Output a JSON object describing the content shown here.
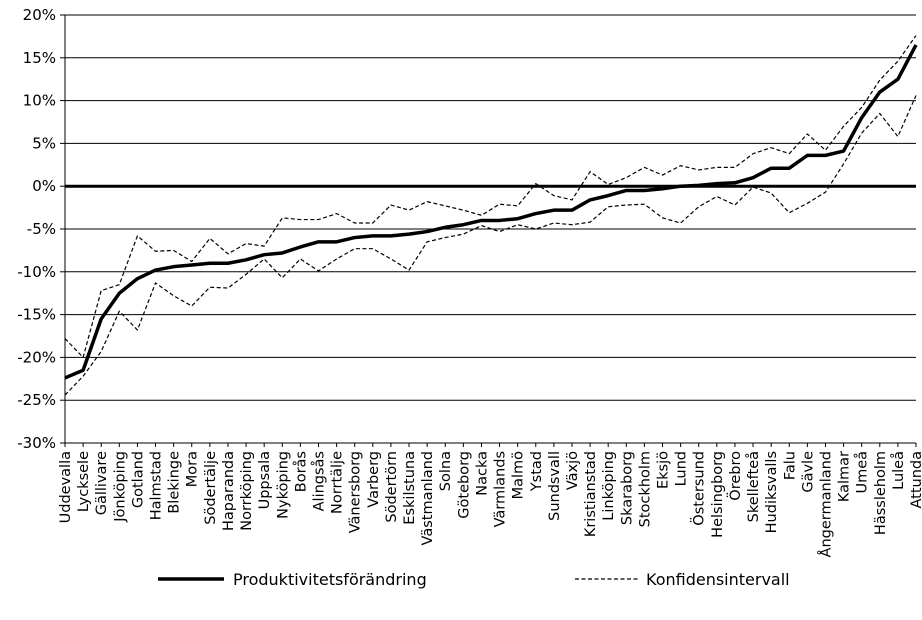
{
  "chart_data": {
    "type": "line",
    "title": "",
    "xlabel": "",
    "ylabel": "",
    "ylim": [
      -30,
      20
    ],
    "yticks": [
      "20%",
      "15%",
      "10%",
      "5%",
      "0%",
      "-5%",
      "-10%",
      "-15%",
      "-20%",
      "-25%",
      "-30%"
    ],
    "ytick_values": [
      20,
      15,
      10,
      5,
      0,
      -5,
      -10,
      -15,
      -20,
      -25,
      -30
    ],
    "grid": "horizontal",
    "legend_position": "bottom",
    "categories": [
      "Uddevalla",
      "Lycksele",
      "Gällivare",
      "Jönköping",
      "Gotland",
      "Halmstad",
      "Blekinge",
      "Mora",
      "Södertälje",
      "Haparanda",
      "Norrköping",
      "Uppsala",
      "Nyköping",
      "Borås",
      "Alingsås",
      "Norrtälje",
      "Vänersborg",
      "Varberg",
      "Södertörn",
      "Eskilstuna",
      "Västmanland",
      "Solna",
      "Göteborg",
      "Nacka",
      "Värmlands",
      "Malmö",
      "Ystad",
      "Sundsvall",
      "Växjö",
      "Kristianstad",
      "Linköping",
      "Skaraborg",
      "Stockholm",
      "Eksjö",
      "Lund",
      "Östersund",
      "Helsingborg",
      "Örebro",
      "Skellefteå",
      "Hudiksvalls",
      "Falu",
      "Gävle",
      "Ångermanland",
      "Kalmar",
      "Umeå",
      "Hässleholm",
      "Luleå",
      "Attunda"
    ],
    "series": [
      {
        "name": "Produktivitetsförändring",
        "style": "solid",
        "color": "#000000",
        "values": [
          -22.4,
          -21.5,
          -15.5,
          -12.5,
          -10.8,
          -9.8,
          -9.4,
          -9.2,
          -9.0,
          -9.0,
          -8.6,
          -8.0,
          -7.8,
          -7.1,
          -6.5,
          -6.5,
          -6.0,
          -5.8,
          -5.8,
          -5.6,
          -5.3,
          -4.8,
          -4.5,
          -4.0,
          -4.0,
          -3.8,
          -3.2,
          -2.8,
          -2.8,
          -1.6,
          -1.1,
          -0.5,
          -0.5,
          -0.3,
          0.0,
          0.1,
          0.3,
          0.4,
          1.0,
          2.1,
          2.1,
          3.6,
          3.6,
          4.1,
          8.0,
          11.0,
          12.5,
          16.5
        ]
      },
      {
        "name": "Konfidensintervall",
        "style": "dashed",
        "color": "#000000",
        "values": [
          -17.8,
          -20.0,
          -12.2,
          -11.5,
          -5.8,
          -7.6,
          -7.5,
          -8.8,
          -6.1,
          -7.9,
          -6.7,
          -7.0,
          -3.7,
          -3.9,
          -3.9,
          -3.2,
          -4.3,
          -4.3,
          -2.2,
          -2.8,
          -1.8,
          -2.3,
          -2.8,
          -3.4,
          -2.1,
          -2.3,
          0.3,
          -1.1,
          -1.6,
          1.7,
          0.2,
          1.0,
          2.2,
          1.3,
          2.4,
          1.9,
          2.2,
          2.2,
          3.8,
          4.5,
          3.8,
          6.1,
          4.2,
          7.0,
          9.2,
          12.4,
          14.6,
          17.6
        ]
      },
      {
        "name": "",
        "style": "dashed",
        "color": "#000000",
        "values": [
          -24.4,
          -22.2,
          -19.3,
          -14.6,
          -16.8,
          -11.3,
          -12.8,
          -14.0,
          -11.8,
          -11.9,
          -10.3,
          -8.5,
          -10.7,
          -8.5,
          -9.9,
          -8.5,
          -7.3,
          -7.3,
          -8.5,
          -9.8,
          -6.5,
          -6.0,
          -5.6,
          -4.6,
          -5.3,
          -4.5,
          -5.0,
          -4.3,
          -4.5,
          -4.2,
          -2.4,
          -2.2,
          -2.1,
          -3.7,
          -4.3,
          -2.4,
          -1.2,
          -2.2,
          -0.1,
          -0.8,
          -3.1,
          -2.0,
          -0.7,
          2.6,
          6.2,
          8.5,
          5.8,
          10.6
        ]
      }
    ],
    "reference_line": {
      "y": 0
    }
  }
}
